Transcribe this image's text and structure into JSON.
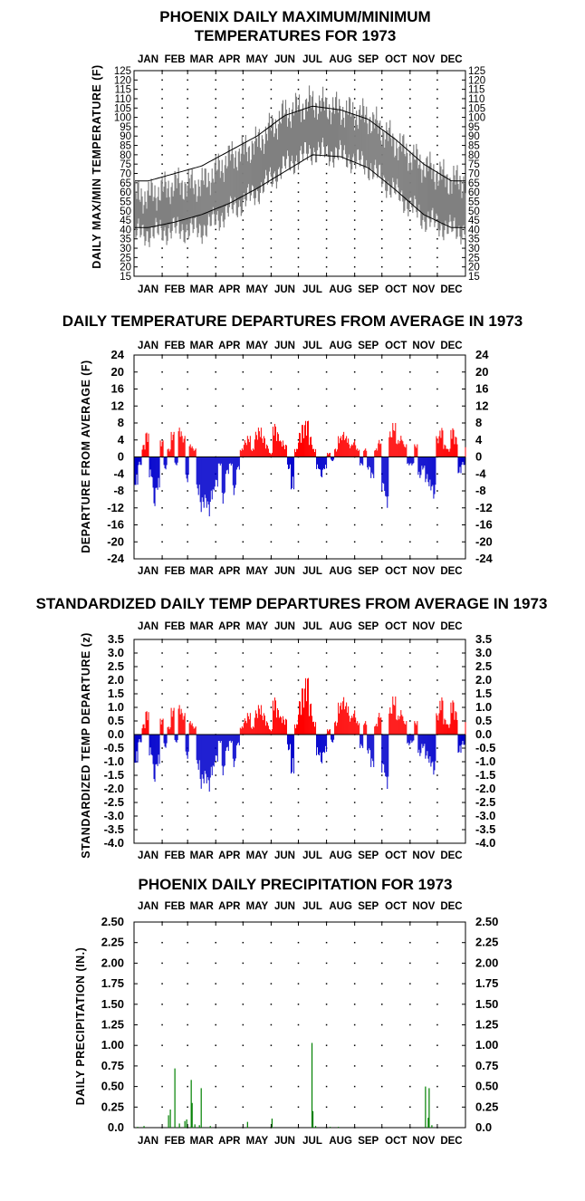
{
  "months": [
    "JAN",
    "FEB",
    "MAR",
    "APR",
    "MAY",
    "JUN",
    "JUL",
    "AUG",
    "SEP",
    "OCT",
    "NOV",
    "DEC"
  ],
  "colors": {
    "positive": "#ff0000",
    "negative": "#0000cc",
    "range": "#808080",
    "normals": "#000000",
    "precip": "#008000"
  },
  "chart_data": [
    {
      "type": "area",
      "title": "PHOENIX DAILY MAXIMUM/MINIMUM TEMPERATURES FOR 1973",
      "title_line1": "PHOENIX DAILY MAXIMUM/MINIMUM",
      "title_line2": "TEMPERATURES FOR 1973",
      "ylabel": "DAILY MAX/MIN TEMPERATURE (F)",
      "ylim": [
        15,
        125
      ],
      "yticks": [
        "15",
        "20",
        "25",
        "30",
        "35",
        "40",
        "45",
        "50",
        "55",
        "60",
        "65",
        "70",
        "75",
        "80",
        "85",
        "90",
        "95",
        "100",
        "105",
        "110",
        "115",
        "120",
        "125"
      ],
      "grid": true,
      "x_monthly": [
        "JAN",
        "FEB",
        "MAR",
        "APR",
        "MAY",
        "JUN",
        "JUL",
        "AUG",
        "SEP",
        "OCT",
        "NOV",
        "DEC"
      ],
      "series": [
        {
          "role": "observed_max",
          "values": [
            58,
            64,
            64,
            78,
            86,
            102,
            108,
            104,
            100,
            86,
            74,
            66
          ]
        },
        {
          "role": "observed_min",
          "values": [
            38,
            40,
            40,
            50,
            60,
            74,
            82,
            80,
            74,
            60,
            46,
            40
          ]
        },
        {
          "role": "normal_max",
          "values": [
            66,
            70,
            74,
            82,
            90,
            101,
            106,
            104,
            99,
            88,
            75,
            66
          ]
        },
        {
          "role": "normal_min",
          "values": [
            41,
            44,
            48,
            54,
            62,
            71,
            80,
            79,
            73,
            61,
            48,
            41
          ]
        }
      ]
    },
    {
      "type": "bar",
      "title": "DAILY TEMPERATURE DEPARTURES FROM AVERAGE IN 1973",
      "ylabel": "DEPARTURE FROM AVERAGE (F)",
      "ylim": [
        -24,
        24
      ],
      "yticks": [
        "-24",
        "-20",
        "-16",
        "-12",
        "-8",
        "-4",
        "0",
        "4",
        "8",
        "12",
        "16",
        "20",
        "24"
      ],
      "grid": true,
      "days": [
        1,
        5,
        9,
        13,
        17,
        21,
        25,
        29,
        33,
        37,
        41,
        45,
        49,
        53,
        57,
        61,
        65,
        69,
        73,
        77,
        81,
        85,
        89,
        93,
        97,
        101,
        105,
        109,
        113,
        117,
        121,
        125,
        129,
        133,
        137,
        141,
        145,
        149,
        153,
        157,
        161,
        165,
        169,
        173,
        177,
        181,
        185,
        189,
        193,
        197,
        201,
        205,
        209,
        213,
        217,
        221,
        225,
        229,
        233,
        237,
        241,
        245,
        249,
        253,
        257,
        261,
        265,
        269,
        273,
        277,
        281,
        285,
        289,
        293,
        297,
        301,
        305,
        309,
        313,
        317,
        321,
        325,
        329,
        333,
        337,
        341,
        345,
        349,
        353,
        357,
        361,
        365
      ],
      "values": [
        -7,
        -2,
        3,
        6,
        -5,
        -12,
        -8,
        4,
        -3,
        2,
        6,
        -2,
        7,
        5,
        -6,
        3,
        2,
        -9,
        -13,
        -12,
        -14,
        -10,
        -7,
        -2,
        -11,
        -4,
        -2,
        -9,
        -3,
        2,
        4,
        5,
        2,
        6,
        7,
        5,
        3,
        1,
        8,
        6,
        4,
        3,
        -3,
        -8,
        2,
        6,
        8,
        9,
        5,
        2,
        -3,
        -5,
        -3,
        1,
        -1,
        2,
        5,
        6,
        5,
        3,
        4,
        2,
        -2,
        2,
        -3,
        -5,
        2,
        4,
        -8,
        -12,
        6,
        8,
        4,
        5,
        3,
        -2,
        -2,
        3,
        -5,
        -3,
        -6,
        -8,
        -10,
        5,
        7,
        3,
        2,
        7,
        5,
        -4,
        -2,
        4
      ]
    },
    {
      "type": "bar",
      "title": "STANDARDIZED DAILY TEMP DEPARTURES FROM AVERAGE IN 1973",
      "ylabel": "STANDARDIZED TEMP DEPARTURE (z)",
      "ylim": [
        -4.0,
        3.5
      ],
      "yticks": [
        "-4.0",
        "-3.5",
        "-3.0",
        "-2.5",
        "-2.0",
        "-1.5",
        "-1.0",
        "-0.5",
        "0.0",
        "0.5",
        "1.0",
        "1.5",
        "2.0",
        "2.5",
        "3.0",
        "3.5"
      ],
      "grid": true,
      "days": [
        1,
        5,
        9,
        13,
        17,
        21,
        25,
        29,
        33,
        37,
        41,
        45,
        49,
        53,
        57,
        61,
        65,
        69,
        73,
        77,
        81,
        85,
        89,
        93,
        97,
        101,
        105,
        109,
        113,
        117,
        121,
        125,
        129,
        133,
        137,
        141,
        145,
        149,
        153,
        157,
        161,
        165,
        169,
        173,
        177,
        181,
        185,
        189,
        193,
        197,
        201,
        205,
        209,
        213,
        217,
        221,
        225,
        229,
        233,
        237,
        241,
        245,
        249,
        253,
        257,
        261,
        265,
        269,
        273,
        277,
        281,
        285,
        289,
        293,
        297,
        301,
        305,
        309,
        313,
        317,
        321,
        325,
        329,
        333,
        337,
        341,
        345,
        349,
        353,
        357,
        361,
        365
      ],
      "values": [
        -1.1,
        -0.3,
        0.4,
        0.9,
        -0.8,
        -1.8,
        -1.2,
        0.6,
        -0.5,
        0.3,
        1.0,
        -0.3,
        1.1,
        0.8,
        -0.9,
        0.5,
        0.3,
        -1.3,
        -2.0,
        -1.8,
        -2.1,
        -1.5,
        -1.0,
        -0.3,
        -1.5,
        -0.6,
        -0.3,
        -1.2,
        -0.4,
        0.3,
        0.6,
        0.8,
        0.3,
        0.9,
        1.1,
        0.8,
        0.5,
        0.2,
        1.4,
        1.0,
        0.7,
        0.6,
        -0.6,
        -1.5,
        0.4,
        1.3,
        1.8,
        2.2,
        1.2,
        0.5,
        -0.8,
        -1.1,
        -0.7,
        0.2,
        -0.3,
        0.5,
        1.2,
        1.4,
        1.2,
        0.7,
        0.9,
        0.5,
        -0.5,
        0.5,
        -0.7,
        -1.2,
        0.4,
        0.8,
        -1.4,
        -2.0,
        1.0,
        1.4,
        0.7,
        0.9,
        0.5,
        -0.4,
        -0.3,
        0.5,
        -0.8,
        -0.5,
        -0.9,
        -1.2,
        -1.5,
        0.8,
        1.4,
        0.6,
        0.4,
        1.3,
        0.9,
        -0.7,
        -0.4,
        0.8
      ]
    },
    {
      "type": "bar",
      "title": "PHOENIX DAILY PRECIPITATION FOR 1973",
      "ylabel": "DAILY PRECIPITATION (IN.)",
      "ylim": [
        0,
        2.5
      ],
      "yticks": [
        "0.0",
        "0.25",
        "0.50",
        "0.75",
        "1.00",
        "1.25",
        "1.50",
        "1.75",
        "2.00",
        "2.25",
        "2.50"
      ],
      "grid": true,
      "days": [
        4,
        11,
        38,
        40,
        45,
        50,
        56,
        58,
        63,
        64,
        67,
        72,
        74,
        84,
        125,
        152,
        196,
        197,
        200,
        216,
        225,
        321,
        324,
        325,
        328
      ],
      "values": [
        0.01,
        0.02,
        0.15,
        0.22,
        0.72,
        0.05,
        0.08,
        0.1,
        0.58,
        0.3,
        0.04,
        0.03,
        0.48,
        0.02,
        0.07,
        0.11,
        1.03,
        0.2,
        0.02,
        0.01,
        0.01,
        0.5,
        0.12,
        0.48,
        0.03
      ]
    }
  ]
}
